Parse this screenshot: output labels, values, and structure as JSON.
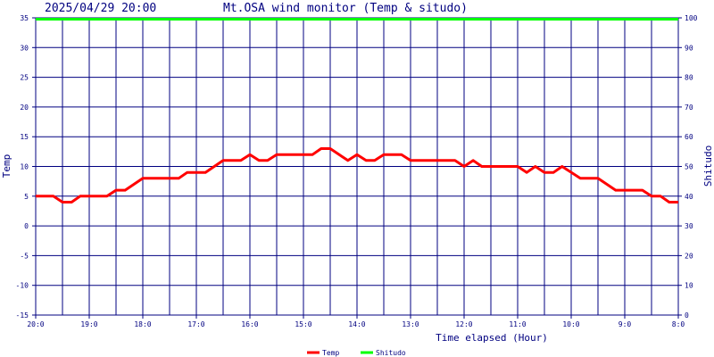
{
  "header": {
    "datetime": "2025/04/29 20:00",
    "title": "Mt.OSA wind monitor (Temp & situdo)"
  },
  "chart_data": {
    "type": "line",
    "xlabel": "Time elapsed (Hour)",
    "ylabel": "Temp",
    "y2label": "Shitudo",
    "ylim": [
      -15,
      35
    ],
    "y2lim": [
      0,
      100
    ],
    "yticks": [
      "35",
      "30",
      "25",
      "20",
      "15",
      "10",
      "5",
      "0",
      "-5",
      "-10",
      "-15"
    ],
    "y2ticks": [
      "100",
      "90",
      "80",
      "70",
      "60",
      "50",
      "40",
      "30",
      "20",
      "10",
      "0"
    ],
    "xlim": [
      0,
      12
    ],
    "xticks": [
      {
        "x": 0,
        "label": "20:0"
      },
      {
        "x": 1,
        "label": "19:0"
      },
      {
        "x": 2,
        "label": "18:0"
      },
      {
        "x": 3,
        "label": "17:0"
      },
      {
        "x": 4,
        "label": "16:0"
      },
      {
        "x": 5,
        "label": "15:0"
      },
      {
        "x": 6,
        "label": "14:0"
      },
      {
        "x": 7,
        "label": "13:0"
      },
      {
        "x": 8,
        "label": "12:0"
      },
      {
        "x": 9,
        "label": "11:0"
      },
      {
        "x": 10,
        "label": "10:0"
      },
      {
        "x": 11,
        "label": "9:0"
      },
      {
        "x": 12,
        "label": "8:0"
      }
    ],
    "grid": true,
    "legend": "bottom-center",
    "series": [
      {
        "name": "Temp",
        "color": "#ff0000",
        "axis": "left",
        "points": [
          [
            0,
            5
          ],
          [
            0.33,
            5
          ],
          [
            0.5,
            4
          ],
          [
            0.67,
            4
          ],
          [
            0.83,
            5
          ],
          [
            1.33,
            5
          ],
          [
            1.5,
            6
          ],
          [
            1.67,
            6
          ],
          [
            2,
            8
          ],
          [
            2.67,
            8
          ],
          [
            2.83,
            9
          ],
          [
            3.17,
            9
          ],
          [
            3.5,
            11
          ],
          [
            3.83,
            11
          ],
          [
            4,
            12
          ],
          [
            4.17,
            11
          ],
          [
            4.33,
            11
          ],
          [
            4.5,
            12
          ],
          [
            5.17,
            12
          ],
          [
            5.33,
            13
          ],
          [
            5.5,
            13
          ],
          [
            5.83,
            11
          ],
          [
            6,
            12
          ],
          [
            6.17,
            11
          ],
          [
            6.33,
            11
          ],
          [
            6.5,
            12
          ],
          [
            6.83,
            12
          ],
          [
            7,
            11
          ],
          [
            7.83,
            11
          ],
          [
            8,
            10
          ],
          [
            8.17,
            11
          ],
          [
            8.33,
            10
          ],
          [
            9,
            10
          ],
          [
            9.17,
            9
          ],
          [
            9.33,
            10
          ],
          [
            9.5,
            9
          ],
          [
            9.67,
            9
          ],
          [
            9.83,
            10
          ],
          [
            10.17,
            8
          ],
          [
            10.5,
            8
          ],
          [
            10.83,
            6
          ],
          [
            11.33,
            6
          ],
          [
            11.5,
            5
          ],
          [
            11.67,
            5
          ],
          [
            11.83,
            4
          ],
          [
            12,
            4
          ]
        ]
      },
      {
        "name": "Shitudo",
        "color": "#00ff00",
        "axis": "right",
        "points": [
          [
            0,
            100
          ],
          [
            12,
            100
          ]
        ]
      }
    ]
  }
}
